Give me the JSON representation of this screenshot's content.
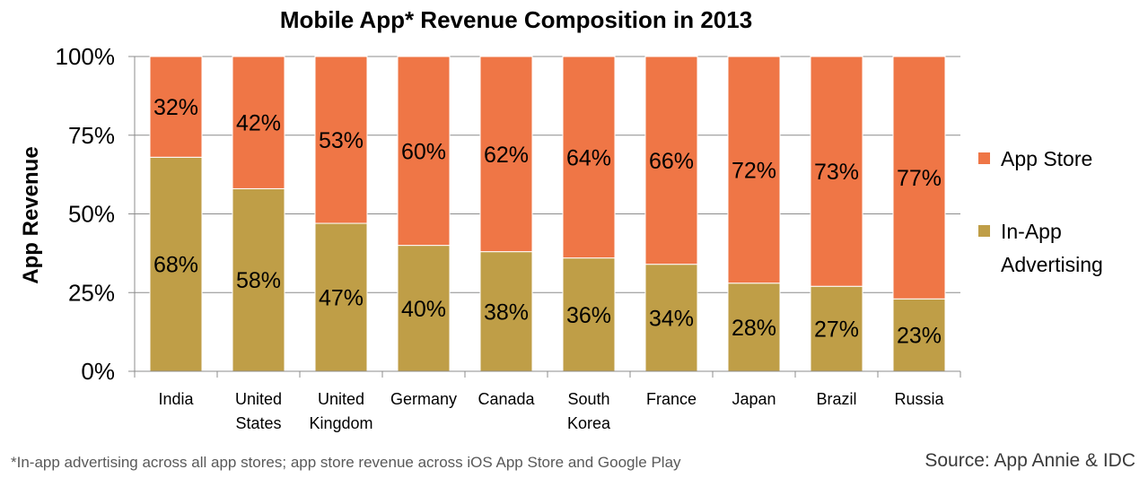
{
  "chart_data": {
    "type": "bar",
    "stacked": true,
    "title": "Mobile App* Revenue Composition in 2013",
    "xlabel": "",
    "ylabel": "App Revenue",
    "ylim": [
      0,
      100
    ],
    "yticks": [
      "0%",
      "25%",
      "50%",
      "75%",
      "100%"
    ],
    "ytick_values": [
      0,
      25,
      50,
      75,
      100
    ],
    "categories": [
      [
        "India"
      ],
      [
        "United",
        "States"
      ],
      [
        "United",
        "Kingdom"
      ],
      [
        "Germany"
      ],
      [
        "Canada"
      ],
      [
        "South",
        "Korea"
      ],
      [
        "France"
      ],
      [
        "Japan"
      ],
      [
        "Brazil"
      ],
      [
        "Russia"
      ]
    ],
    "series": [
      {
        "name": "In-App Advertising",
        "legend_lines": [
          "In-App",
          "Advertising"
        ],
        "color": "#BF9E47",
        "values": [
          68,
          58,
          47,
          40,
          38,
          36,
          34,
          28,
          27,
          23
        ]
      },
      {
        "name": "App Store",
        "legend_lines": [
          "App Store"
        ],
        "color": "#EF7646",
        "values": [
          32,
          42,
          53,
          60,
          62,
          64,
          66,
          72,
          73,
          77
        ]
      }
    ],
    "grid": true,
    "legend_position": "right"
  },
  "footnote": "*In-app advertising across all app stores; app store revenue across iOS App Store and Google Play",
  "source": "Source: App Annie & IDC"
}
